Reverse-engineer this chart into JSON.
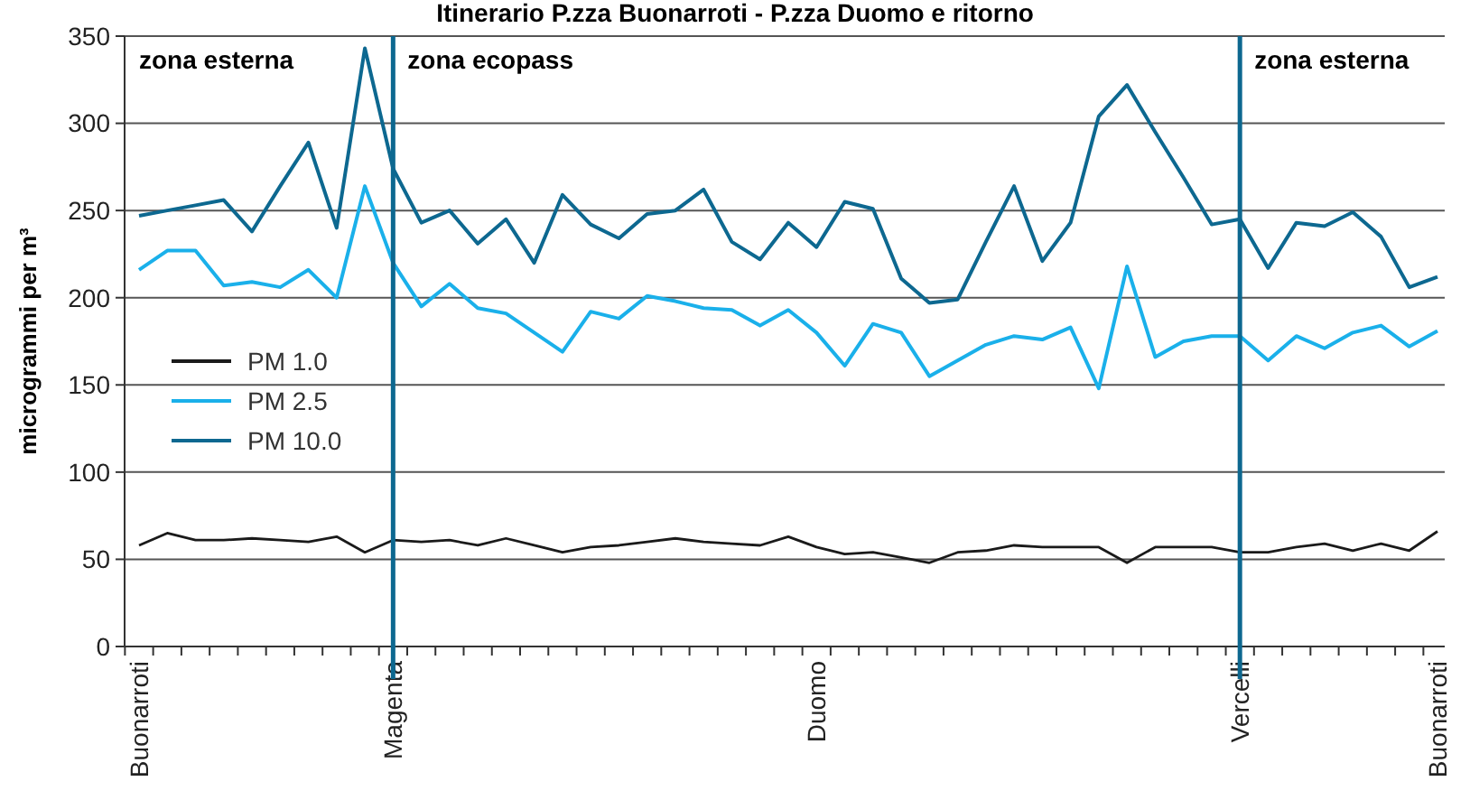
{
  "chart_data": {
    "type": "line",
    "title": "Itinerario P.zza Buonarroti - P.zza Duomo e ritorno",
    "ylabel": "microgrammi per m³",
    "categories": [
      "Buonarroti",
      null,
      null,
      null,
      null,
      null,
      null,
      null,
      null,
      "Magenta",
      null,
      null,
      null,
      null,
      null,
      null,
      null,
      null,
      null,
      null,
      null,
      null,
      null,
      null,
      "Duomo",
      null,
      null,
      null,
      null,
      null,
      null,
      null,
      null,
      null,
      null,
      null,
      null,
      null,
      null,
      "Vercelli",
      null,
      null,
      null,
      null,
      null,
      null,
      "Buonarroti"
    ],
    "series": [
      {
        "name": "PM 1.0",
        "color": "#1a1a1a",
        "values": [
          58,
          65,
          61,
          61,
          62,
          61,
          60,
          63,
          54,
          61,
          60,
          61,
          58,
          62,
          58,
          54,
          57,
          58,
          60,
          62,
          60,
          59,
          58,
          63,
          57,
          53,
          54,
          51,
          48,
          54,
          55,
          58,
          57,
          57,
          57,
          48,
          57,
          57,
          57,
          54,
          54,
          57,
          59,
          55,
          59,
          55,
          66
        ]
      },
      {
        "name": "PM 2.5",
        "color": "#1ab0ea",
        "values": [
          216,
          227,
          227,
          207,
          209,
          206,
          216,
          200,
          264,
          220,
          195,
          208,
          194,
          191,
          180,
          169,
          192,
          188,
          201,
          198,
          194,
          193,
          184,
          193,
          180,
          161,
          185,
          180,
          155,
          164,
          173,
          178,
          176,
          183,
          148,
          218,
          166,
          175,
          178,
          178,
          164,
          178,
          171,
          180,
          184,
          172,
          181
        ]
      },
      {
        "name": "PM 10.0",
        "color": "#0d6890",
        "values": [
          247,
          250,
          253,
          256,
          238,
          264,
          289,
          240,
          343,
          274,
          243,
          250,
          231,
          245,
          220,
          259,
          242,
          234,
          248,
          250,
          262,
          232,
          222,
          243,
          229,
          255,
          251,
          211,
          197,
          199,
          232,
          264,
          221,
          243,
          304,
          322,
          295,
          269,
          242,
          245,
          217,
          243,
          241,
          249,
          235,
          206,
          212
        ]
      }
    ],
    "ylim": [
      0,
      350
    ],
    "yticks": [
      0,
      50,
      100,
      150,
      200,
      250,
      300,
      350
    ],
    "grid": "y",
    "legend": "left",
    "line_style": "solid",
    "marker": "none",
    "ref_lines": [
      {
        "axis": "x",
        "value": "Magenta",
        "label": "zona ecopass",
        "color": "#0d6890"
      },
      {
        "axis": "x",
        "value": "Vercelli",
        "label": "zona esterna",
        "color": "#0d6890"
      }
    ],
    "annotations": [
      "zona esterna"
    ]
  }
}
